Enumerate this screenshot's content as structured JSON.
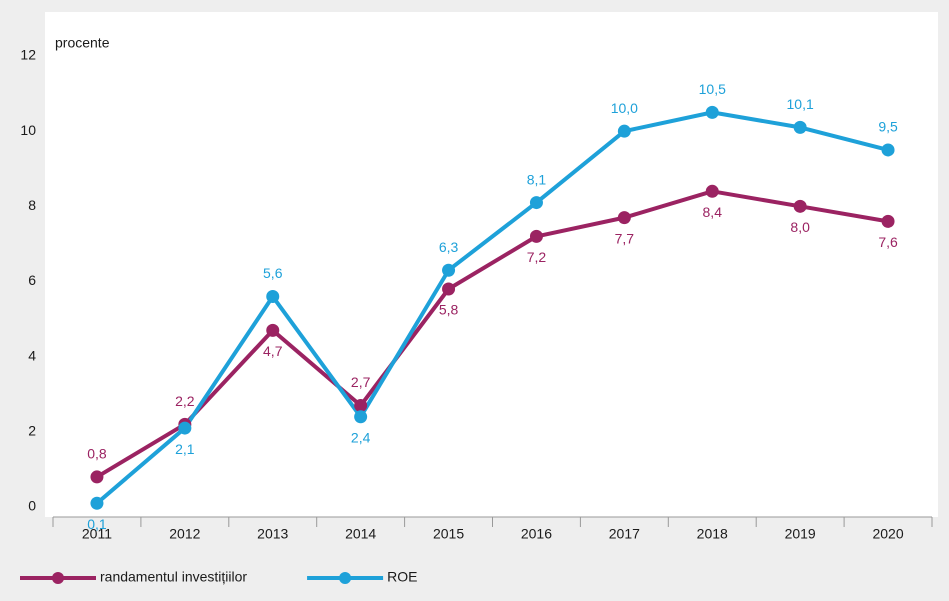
{
  "chart_data": {
    "type": "line",
    "y_label": "procente",
    "categories": [
      "2011",
      "2012",
      "2013",
      "2014",
      "2015",
      "2016",
      "2017",
      "2018",
      "2019",
      "2020"
    ],
    "series": [
      {
        "name": "randamentul investițiilor",
        "color": "#9b2362",
        "values": [
          0.8,
          2.2,
          4.7,
          2.7,
          5.8,
          7.2,
          7.7,
          8.4,
          8.0,
          7.6
        ],
        "value_labels": [
          "0,8",
          "2,2",
          "4,7",
          "2,7",
          "5,8",
          "7,2",
          "7,7",
          "8,4",
          "8,0",
          "7,6"
        ]
      },
      {
        "name": "ROE",
        "color": "#1ea1d9",
        "values": [
          0.1,
          2.1,
          5.6,
          2.4,
          6.3,
          8.1,
          10.0,
          10.5,
          10.1,
          9.5
        ],
        "value_labels": [
          "0,1",
          "2,1",
          "5,6",
          "2,4",
          "6,3",
          "8,1",
          "10,0",
          "10,5",
          "10,1",
          "9,5"
        ]
      }
    ],
    "ylim": [
      0,
      12
    ],
    "yticks": [
      0,
      2,
      4,
      6,
      8,
      10,
      12
    ],
    "grid": false,
    "legend": "bottom"
  }
}
